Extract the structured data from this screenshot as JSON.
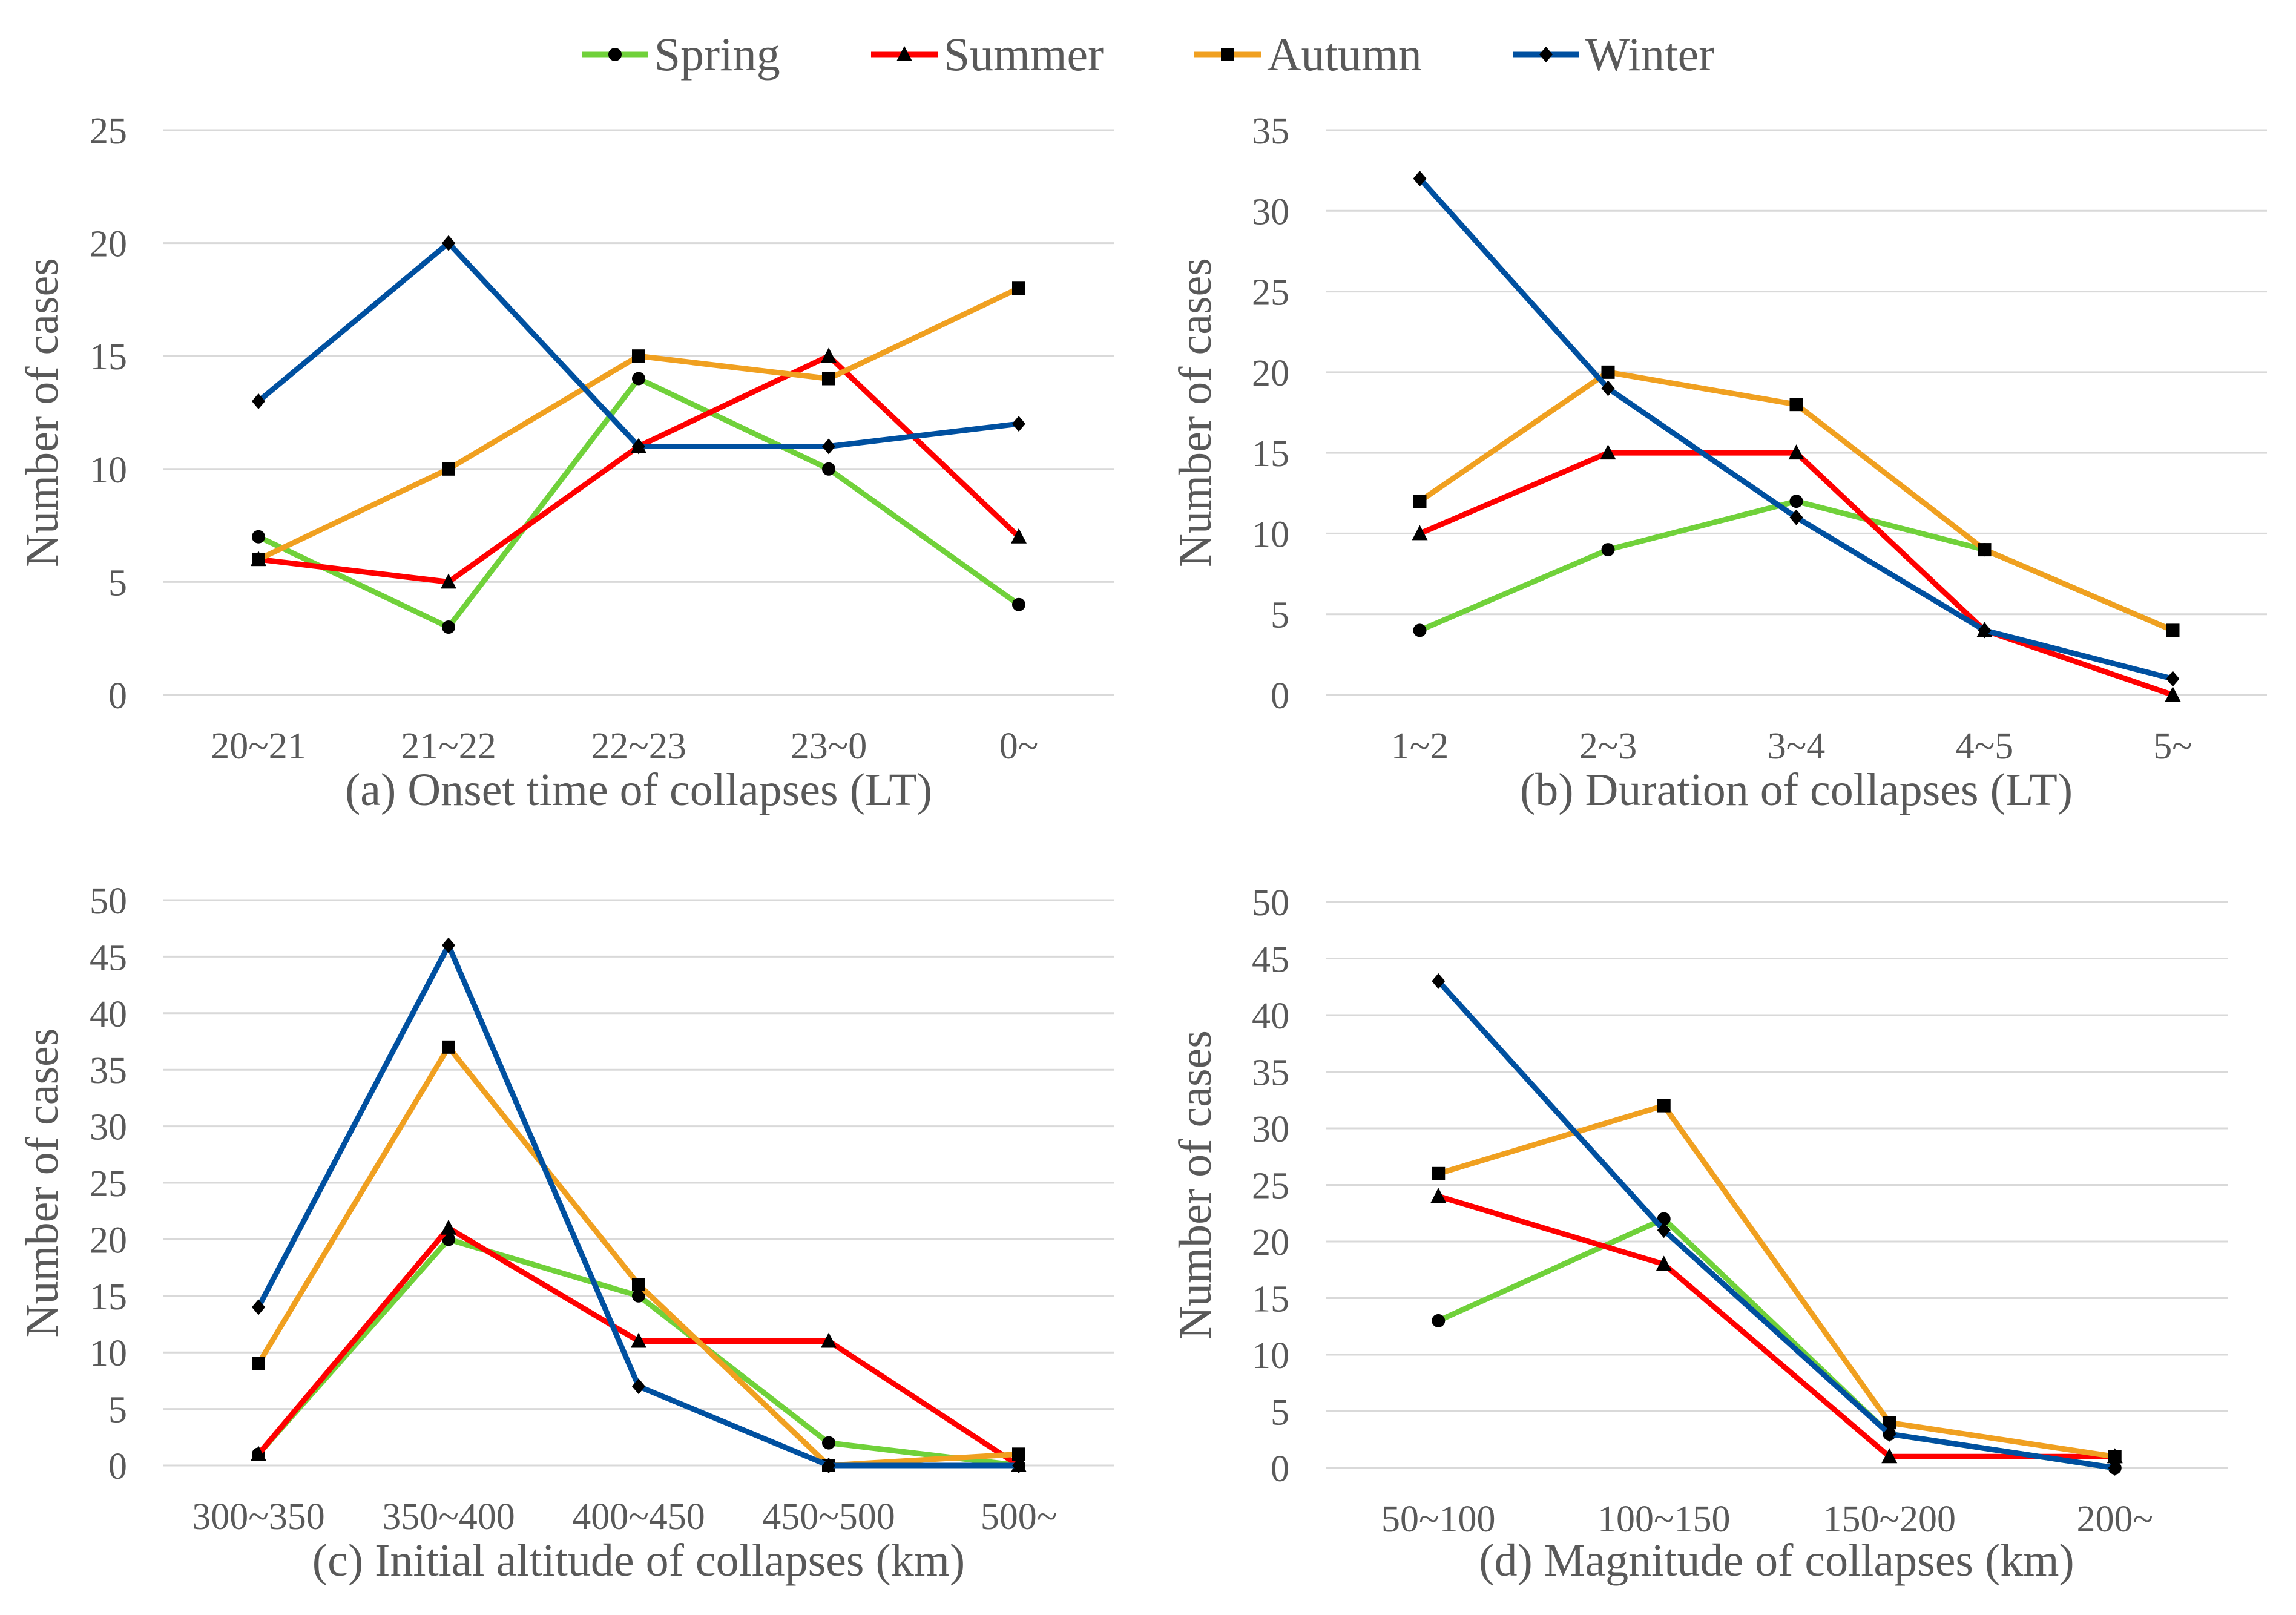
{
  "legend": {
    "items": [
      {
        "name": "Spring",
        "color": "#70d13a",
        "marker": "circle"
      },
      {
        "name": "Summer",
        "color": "#ff0000",
        "marker": "triangle"
      },
      {
        "name": "Autumn",
        "color": "#f0a020",
        "marker": "square"
      },
      {
        "name": "Winter",
        "color": "#0050a0",
        "marker": "diamond"
      }
    ]
  },
  "chart_data": [
    {
      "type": "line",
      "id": "a",
      "caption": "(a) Onset time of collapses (LT)",
      "ylabel": "Number of cases",
      "categories": [
        "20~21",
        "21~22",
        "22~23",
        "23~0",
        "0~"
      ],
      "ylim": [
        0,
        25
      ],
      "yticks": [
        0,
        5,
        10,
        15,
        20,
        25
      ],
      "grid": true,
      "series": [
        {
          "name": "Spring",
          "values": [
            7,
            3,
            14,
            10,
            4
          ]
        },
        {
          "name": "Summer",
          "values": [
            6,
            5,
            11,
            15,
            7
          ]
        },
        {
          "name": "Autumn",
          "values": [
            6,
            10,
            15,
            14,
            18
          ]
        },
        {
          "name": "Winter",
          "values": [
            13,
            20,
            11,
            11,
            12
          ]
        }
      ]
    },
    {
      "type": "line",
      "id": "b",
      "caption": "(b) Duration of collapses (LT)",
      "ylabel": "Number of cases",
      "categories": [
        "1~2",
        "2~3",
        "3~4",
        "4~5",
        "5~"
      ],
      "ylim": [
        0,
        35
      ],
      "yticks": [
        0,
        5,
        10,
        15,
        20,
        25,
        30,
        35
      ],
      "grid": true,
      "series": [
        {
          "name": "Spring",
          "values": [
            4,
            9,
            12,
            9,
            4
          ]
        },
        {
          "name": "Summer",
          "values": [
            10,
            15,
            15,
            4,
            0
          ]
        },
        {
          "name": "Autumn",
          "values": [
            12,
            20,
            18,
            9,
            4
          ]
        },
        {
          "name": "Winter",
          "values": [
            32,
            19,
            11,
            4,
            1
          ]
        }
      ]
    },
    {
      "type": "line",
      "id": "c",
      "caption": "(c) Initial altitude of collapses (km)",
      "ylabel": "Number of cases",
      "categories": [
        "300~350",
        "350~400",
        "400~450",
        "450~500",
        "500~"
      ],
      "ylim": [
        0,
        50
      ],
      "yticks": [
        0,
        5,
        10,
        15,
        20,
        25,
        30,
        35,
        40,
        45,
        50
      ],
      "grid": true,
      "series": [
        {
          "name": "Spring",
          "values": [
            1,
            20,
            15,
            2,
            0
          ]
        },
        {
          "name": "Summer",
          "values": [
            1,
            21,
            11,
            11,
            0
          ]
        },
        {
          "name": "Autumn",
          "values": [
            9,
            37,
            16,
            0,
            1
          ]
        },
        {
          "name": "Winter",
          "values": [
            14,
            46,
            7,
            0,
            0
          ]
        }
      ]
    },
    {
      "type": "line",
      "id": "d",
      "caption": "(d) Magnitude of collapses (km)",
      "ylabel": "Number of cases",
      "categories": [
        "50~100",
        "100~150",
        "150~200",
        "200~"
      ],
      "ylim": [
        0,
        50
      ],
      "yticks": [
        0,
        5,
        10,
        15,
        20,
        25,
        30,
        35,
        40,
        45,
        50
      ],
      "grid": true,
      "series": [
        {
          "name": "Spring",
          "values": [
            13,
            22,
            3,
            0
          ]
        },
        {
          "name": "Summer",
          "values": [
            24,
            18,
            1,
            1
          ]
        },
        {
          "name": "Autumn",
          "values": [
            26,
            32,
            4,
            1
          ]
        },
        {
          "name": "Winter",
          "values": [
            43,
            21,
            3,
            0
          ]
        }
      ]
    }
  ]
}
